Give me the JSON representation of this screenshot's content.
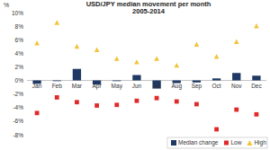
{
  "chart_data": {
    "type": "bar",
    "title": "USD/JPY median movement per month",
    "subtitle": "2005-2014",
    "y_label": "%",
    "categories": [
      "Jan",
      "Feb",
      "Mar",
      "Apr",
      "May",
      "Jun",
      "Jul",
      "Aug",
      "Sep",
      "Oct",
      "Nov",
      "Dec"
    ],
    "series": [
      {
        "name": "Median change",
        "type": "bar",
        "color": "#1f3864",
        "values": [
          -0.5,
          -0.1,
          1.7,
          -0.6,
          -0.1,
          0.8,
          -1.2,
          -0.4,
          -0.3,
          0.3,
          1.1,
          0.7
        ]
      },
      {
        "name": "Low",
        "type": "scatter",
        "marker": "square",
        "color": "#e02a2a",
        "values": [
          -4.8,
          -2.5,
          -3.2,
          -3.7,
          -3.6,
          -3.0,
          -2.6,
          -3.1,
          -3.5,
          -7.2,
          -4.3,
          -5.0
        ]
      },
      {
        "name": "High",
        "type": "scatter",
        "marker": "triangle",
        "color": "#f2c43a",
        "values": [
          5.5,
          8.5,
          5.0,
          4.5,
          3.2,
          2.7,
          3.2,
          2.2,
          5.3,
          3.5,
          5.7,
          8.0
        ]
      }
    ],
    "ylim": [
      -8,
      10
    ],
    "yticks": [
      {
        "value": 10,
        "label": "10%"
      },
      {
        "value": 8,
        "label": "8%"
      },
      {
        "value": 6,
        "label": "6%"
      },
      {
        "value": 4,
        "label": "4%"
      },
      {
        "value": 2,
        "label": "2%"
      },
      {
        "value": 0,
        "label": "0%"
      },
      {
        "value": -2,
        "label": "-2%"
      },
      {
        "value": -4,
        "label": "-4%"
      },
      {
        "value": -6,
        "label": "-6%"
      },
      {
        "value": -8,
        "label": "-8%"
      }
    ],
    "grid": false,
    "legend": "bottom-right"
  }
}
